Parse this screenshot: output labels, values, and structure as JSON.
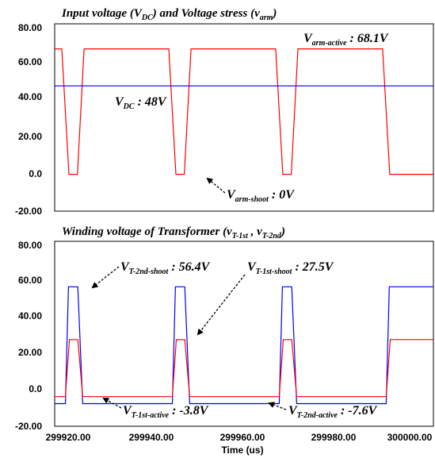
{
  "chart_data": [
    {
      "type": "line",
      "title": {
        "main": "Input voltage (V",
        "sub1": "DC",
        "mid": ") and Voltage stress (v",
        "sub2": "arm",
        "end": ")"
      },
      "ylim": [
        -20,
        80
      ],
      "yticks": [
        "80.00",
        "60.00",
        "40.00",
        "20.00",
        "0.0",
        "-20.00"
      ],
      "xlim": [
        299920,
        300005
      ],
      "grid": false,
      "colors": {
        "v_arm": "#ff0000",
        "v_dc": "#0000ff"
      },
      "series": [
        {
          "key": "v_arm",
          "x": [
            299920,
            299921.6,
            299923.2,
            299925.1,
            299926.6,
            299945.6,
            299947.2,
            299949.1,
            299950.6,
            299969.6,
            299971.2,
            299973.1,
            299974.6,
            299993.6,
            299995.2,
            300005
          ],
          "y": [
            68.1,
            68.1,
            0,
            0,
            68.1,
            68.1,
            0,
            0,
            68.1,
            68.1,
            0,
            0,
            68.1,
            68.1,
            0,
            0
          ]
        },
        {
          "key": "v_dc",
          "x": [
            299920,
            300005
          ],
          "y": [
            48,
            48
          ]
        }
      ],
      "annotations": [
        {
          "main": "V",
          "sub": "arm-active",
          "value": " : 68.1V"
        },
        {
          "main": "V",
          "sub": "DC",
          "value": " : 48V"
        },
        {
          "main": "V",
          "sub": "arm-shoot",
          "value": " : 0V"
        }
      ]
    },
    {
      "type": "line",
      "title": {
        "main": "Winding voltage of Transformer (v",
        "sub1": "T-1st",
        "mid": " , v",
        "sub2": "T-2nd",
        "end": ")"
      },
      "ylim": [
        -20,
        80
      ],
      "yticks": [
        "80.00",
        "60.00",
        "40.00",
        "20.00",
        "0.0",
        "-20.00"
      ],
      "xlim": [
        299920,
        300005
      ],
      "xticks": [
        "299920.00",
        "299940.00",
        "299960.00",
        "299980.00",
        "300000.00"
      ],
      "xlabel": "Time (us)",
      "grid": false,
      "colors": {
        "v_t1": "#ff0000",
        "v_t2": "#0000ff"
      },
      "series": [
        {
          "key": "v_t2",
          "x": [
            299920,
            299922.4,
            299923.1,
            299925.2,
            299926.3,
            299946.4,
            299947.1,
            299949.2,
            299950.3,
            299970.4,
            299971.1,
            299973.2,
            299974.3,
            299994.4,
            299995.1,
            300005
          ],
          "y": [
            -7.6,
            -7.6,
            56.4,
            56.4,
            -7.6,
            -7.6,
            56.4,
            56.4,
            -7.6,
            -7.6,
            56.4,
            56.4,
            -7.6,
            -7.6,
            56.4,
            56.4
          ]
        },
        {
          "key": "v_t1",
          "x": [
            299920,
            299922.4,
            299923.3,
            299925.2,
            299926.3,
            299946.4,
            299947.3,
            299949.2,
            299950.3,
            299970.4,
            299971.3,
            299973.2,
            299974.3,
            299994.4,
            299995.3,
            300005
          ],
          "y": [
            -3.8,
            -3.8,
            27.5,
            27.5,
            -3.8,
            -3.8,
            27.5,
            27.5,
            -3.8,
            -3.8,
            27.5,
            27.5,
            -3.8,
            -3.8,
            27.5,
            27.5
          ]
        }
      ],
      "annotations": [
        {
          "main": "V",
          "sub": "T-2nd-shoot",
          "value": " : 56.4V"
        },
        {
          "main": "V",
          "sub": "T-1st-shoot",
          "value": " : 27.5V"
        },
        {
          "main": "V",
          "sub": "T-1st-active",
          "value": " : -3.8V"
        },
        {
          "main": "V",
          "sub": "T-2nd-active",
          "value": " : -7.6V"
        }
      ]
    }
  ]
}
